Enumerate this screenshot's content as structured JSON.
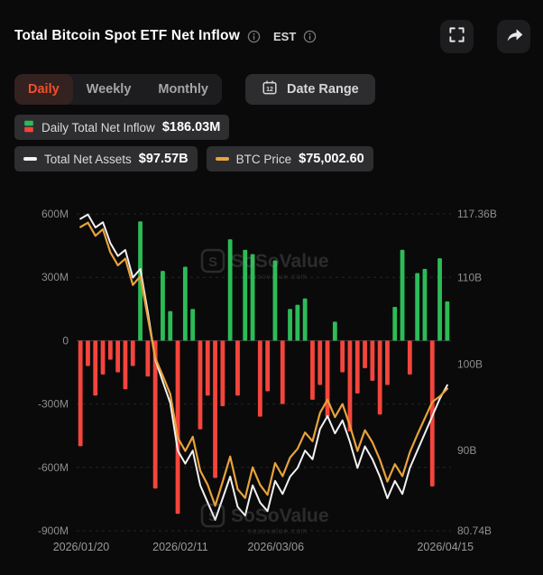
{
  "header": {
    "title": "Total Bitcoin Spot ETF Net Inflow",
    "timezone_label": "EST"
  },
  "toolbar": {
    "tabs": [
      {
        "label": "Daily",
        "active": true
      },
      {
        "label": "Weekly",
        "active": false
      },
      {
        "label": "Monthly",
        "active": false
      }
    ],
    "date_range_label": "Date Range"
  },
  "legend": {
    "items": [
      {
        "label": "Daily Total Net Inflow",
        "value": "$186.03M",
        "icon": "inflow-candle-icon"
      },
      {
        "label": "Total Net Assets",
        "value": "$97.57B",
        "icon": "white-line-icon"
      },
      {
        "label": "BTC Price",
        "value": "$75,002.60",
        "icon": "orange-line-icon"
      }
    ]
  },
  "watermark": {
    "text": "SoSoValue",
    "subtext": "sosovalue.com"
  },
  "colors": {
    "green": "#2cbc56",
    "red": "#f4453c",
    "btc_orange": "#e9a23b",
    "assets_white": "#f2f2f2",
    "active_tab": "#f2502c",
    "axis_text": "#8e8e8e",
    "grid": "#242427",
    "zero_line": "#3d3d40"
  },
  "chart_data": {
    "type": "combo (bar + 2 lines)",
    "title": "Total Bitcoin Spot ETF Net Inflow",
    "x_axis": {
      "tick_labels": [
        "2026/01/20",
        "2026/02/11",
        "2026/03/06",
        "2026/04/15"
      ],
      "tick_positions": [
        0.012,
        0.277,
        0.532,
        0.985
      ]
    },
    "left_axis": {
      "unit": "USD M",
      "range": [
        -900,
        600
      ],
      "ticks": [
        600,
        300,
        0,
        -300,
        -600,
        -900
      ],
      "labels": [
        "600M",
        "300M",
        "0",
        "-300M",
        "-600M",
        "-900M"
      ]
    },
    "right_axis": {
      "unit": "USD B",
      "range": [
        80.74,
        117.36
      ],
      "ticks": [
        117.36,
        110,
        100,
        90,
        80.74
      ],
      "labels": [
        "117.36B",
        "110B",
        "100B",
        "90B",
        "80.74B"
      ]
    },
    "btc_axis_range": [
      62000,
      91000
    ],
    "grid": true,
    "series": [
      {
        "name": "Daily Total Net Inflow",
        "type": "bar",
        "unit": "M USD",
        "axis": "left",
        "positive_color": "#2cbc56",
        "negative_color": "#f4453c",
        "values": [
          -500,
          -120,
          -260,
          -160,
          -90,
          -150,
          -230,
          -120,
          565,
          -170,
          -700,
          330,
          140,
          -820,
          350,
          150,
          -420,
          -260,
          -650,
          -310,
          480,
          -260,
          430,
          410,
          -360,
          -240,
          380,
          -300,
          150,
          170,
          200,
          -280,
          -210,
          -360,
          90,
          -150,
          -430,
          -250,
          -130,
          -190,
          -350,
          -210,
          160,
          430,
          -160,
          320,
          340,
          -690,
          390,
          186.03
        ]
      },
      {
        "name": "Total Net Assets",
        "type": "line",
        "unit": "B USD",
        "axis": "right",
        "color": "#f2f2f2",
        "values": [
          116.8,
          117.3,
          115.8,
          116.4,
          114.0,
          112.5,
          113.2,
          110.0,
          111.0,
          106.0,
          100.5,
          98.0,
          95.5,
          90.0,
          88.5,
          90.0,
          86.0,
          84.0,
          82.0,
          84.5,
          87.0,
          83.5,
          82.5,
          86.0,
          84.0,
          83.0,
          86.5,
          85.0,
          87.0,
          88.0,
          90.0,
          89.0,
          92.5,
          94.0,
          92.0,
          93.5,
          91.0,
          88.0,
          90.5,
          89.0,
          87.0,
          84.5,
          86.5,
          85.0,
          88.0,
          90.0,
          92.0,
          94.0,
          96.0,
          97.57
        ]
      },
      {
        "name": "BTC Price",
        "type": "line",
        "unit": "USD",
        "axis": "hidden",
        "color": "#e9a23b",
        "values": [
          89800,
          90200,
          89000,
          89600,
          87500,
          86300,
          86900,
          84500,
          85300,
          81500,
          77800,
          76200,
          74500,
          70500,
          69300,
          70600,
          67500,
          66200,
          64300,
          66500,
          68800,
          65800,
          65000,
          67800,
          66200,
          65300,
          68200,
          67000,
          68700,
          69500,
          71000,
          70200,
          72800,
          74000,
          72400,
          73600,
          71600,
          69300,
          71200,
          70100,
          68500,
          66500,
          68100,
          67000,
          69200,
          70800,
          72300,
          73800,
          74300,
          75002.6
        ]
      }
    ],
    "legend_position": "top"
  }
}
